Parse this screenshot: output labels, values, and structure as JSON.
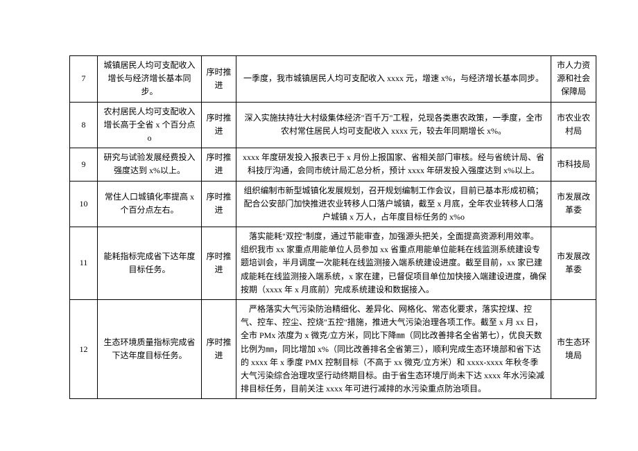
{
  "table": {
    "columns": {
      "num_width": 40,
      "indicator_width": 150,
      "status_width": 50,
      "dept_width": 65,
      "font_size": 12,
      "border_color": "#000000",
      "text_color": "#000000",
      "background_color": "#ffffff"
    },
    "rows": [
      {
        "num": "7",
        "indicator": "城镇居民人均可支配收入增长与经济增长基本同步。",
        "status": "序时推进",
        "detail": "一季度，我市城镇居民人均可支配收入 xxxx 元，增速 x%，与经济增长基本同步。",
        "detail_align": "center",
        "dept": "市人力资源和社会保障局"
      },
      {
        "num": "8",
        "indicator": "农村居民人均可支配收入增长高于全省 x 个百分点 o",
        "status": "序时推进",
        "detail": "深入实施扶持壮大村级集体经济\"百千万\"工程，兑现各类惠农政策，一季度，全市农村常住居民人均可支配收入 xxxx 元，较去年同期增长 x%。",
        "detail_align": "center",
        "dept": "市农业农村局"
      },
      {
        "num": "9",
        "indicator": "研究与试验发展经费投入强度达到 x%以上。",
        "status": "序时推进",
        "detail": "xxxx 年度研发投入报表已于 x 月份上报国家、省相关部门审核。经与省统计局、省科技厅沟通，会同市统计局汇总分析，预计 xxxx 年研发投入强度达到 x%以上。",
        "detail_align": "center",
        "dept": "市科技局"
      },
      {
        "num": "10",
        "indicator": "常住人口城镇化率提高 x 个百分点左右。",
        "status": "序时推进",
        "detail": "组织编制市新型城镇化发展规划，召开规划编制工作会议，目前已基本形成初稿；配合公安部门加快推进农业转移人口落户城镇，截至 x 月底，全年农业转移人口落户城镇 x 万人，占年度目标任务的 x%o",
        "detail_align": "center",
        "dept": "市发展改革委"
      },
      {
        "num": "11",
        "indicator": "能耗指标完成省下达年度目标任务。",
        "status": "序时推进",
        "detail": "落实能耗\"双控\"制度，通过节能审查，加强源头把关，全面提高资源利用效率。组织我市 xx 家重点用能单位人员参加 xx 省重点用能单位能耗在线监测系统建设专题培训会，半月调度一次能耗在线监测接入端系统建设进度。截至目前，xx 家已建成能耗在线监测接入端系统，x 家在建，已督促项目单位加快接入端建设进度，确保按期（xxxx 年 x 月底前）完成系统建设和数据接入。",
        "detail_align": "left",
        "dept": "市发展改革委"
      },
      {
        "num": "12",
        "indicator": "生态环境质量指标完成省下达年度目标任务。",
        "status": "序时推进",
        "detail": "严格落实大气污染防治精细化、差异化、网格化、常态化要求，落实控煤、控气、控车、控尘、控烧\"五控\"措施，推进大气污染治理各项工作。截至 x 月 xx 日，全市 PMx 浓度为 x 微克/立方米，同比下降㎜（同比改善排名全省第七），优良天数比例为㎜，同比增加 x%（同比改善排名全省第三），顺利完成生态环境部和省下达的 xxxx 年 x 季度 PMX 控制目标（不高于 xx 微克/立方米）和 xxxx-xxxx 年秋冬季大气污染综合治理攻坚行动终期目标。由于省生态环境厅尚未下达 xxxx 年水污染减排目标任务，目前关注 xxxx 年可进行减排的水污染重点防治项目。",
        "detail_align": "left",
        "dept": "市生态环境局"
      }
    ]
  }
}
